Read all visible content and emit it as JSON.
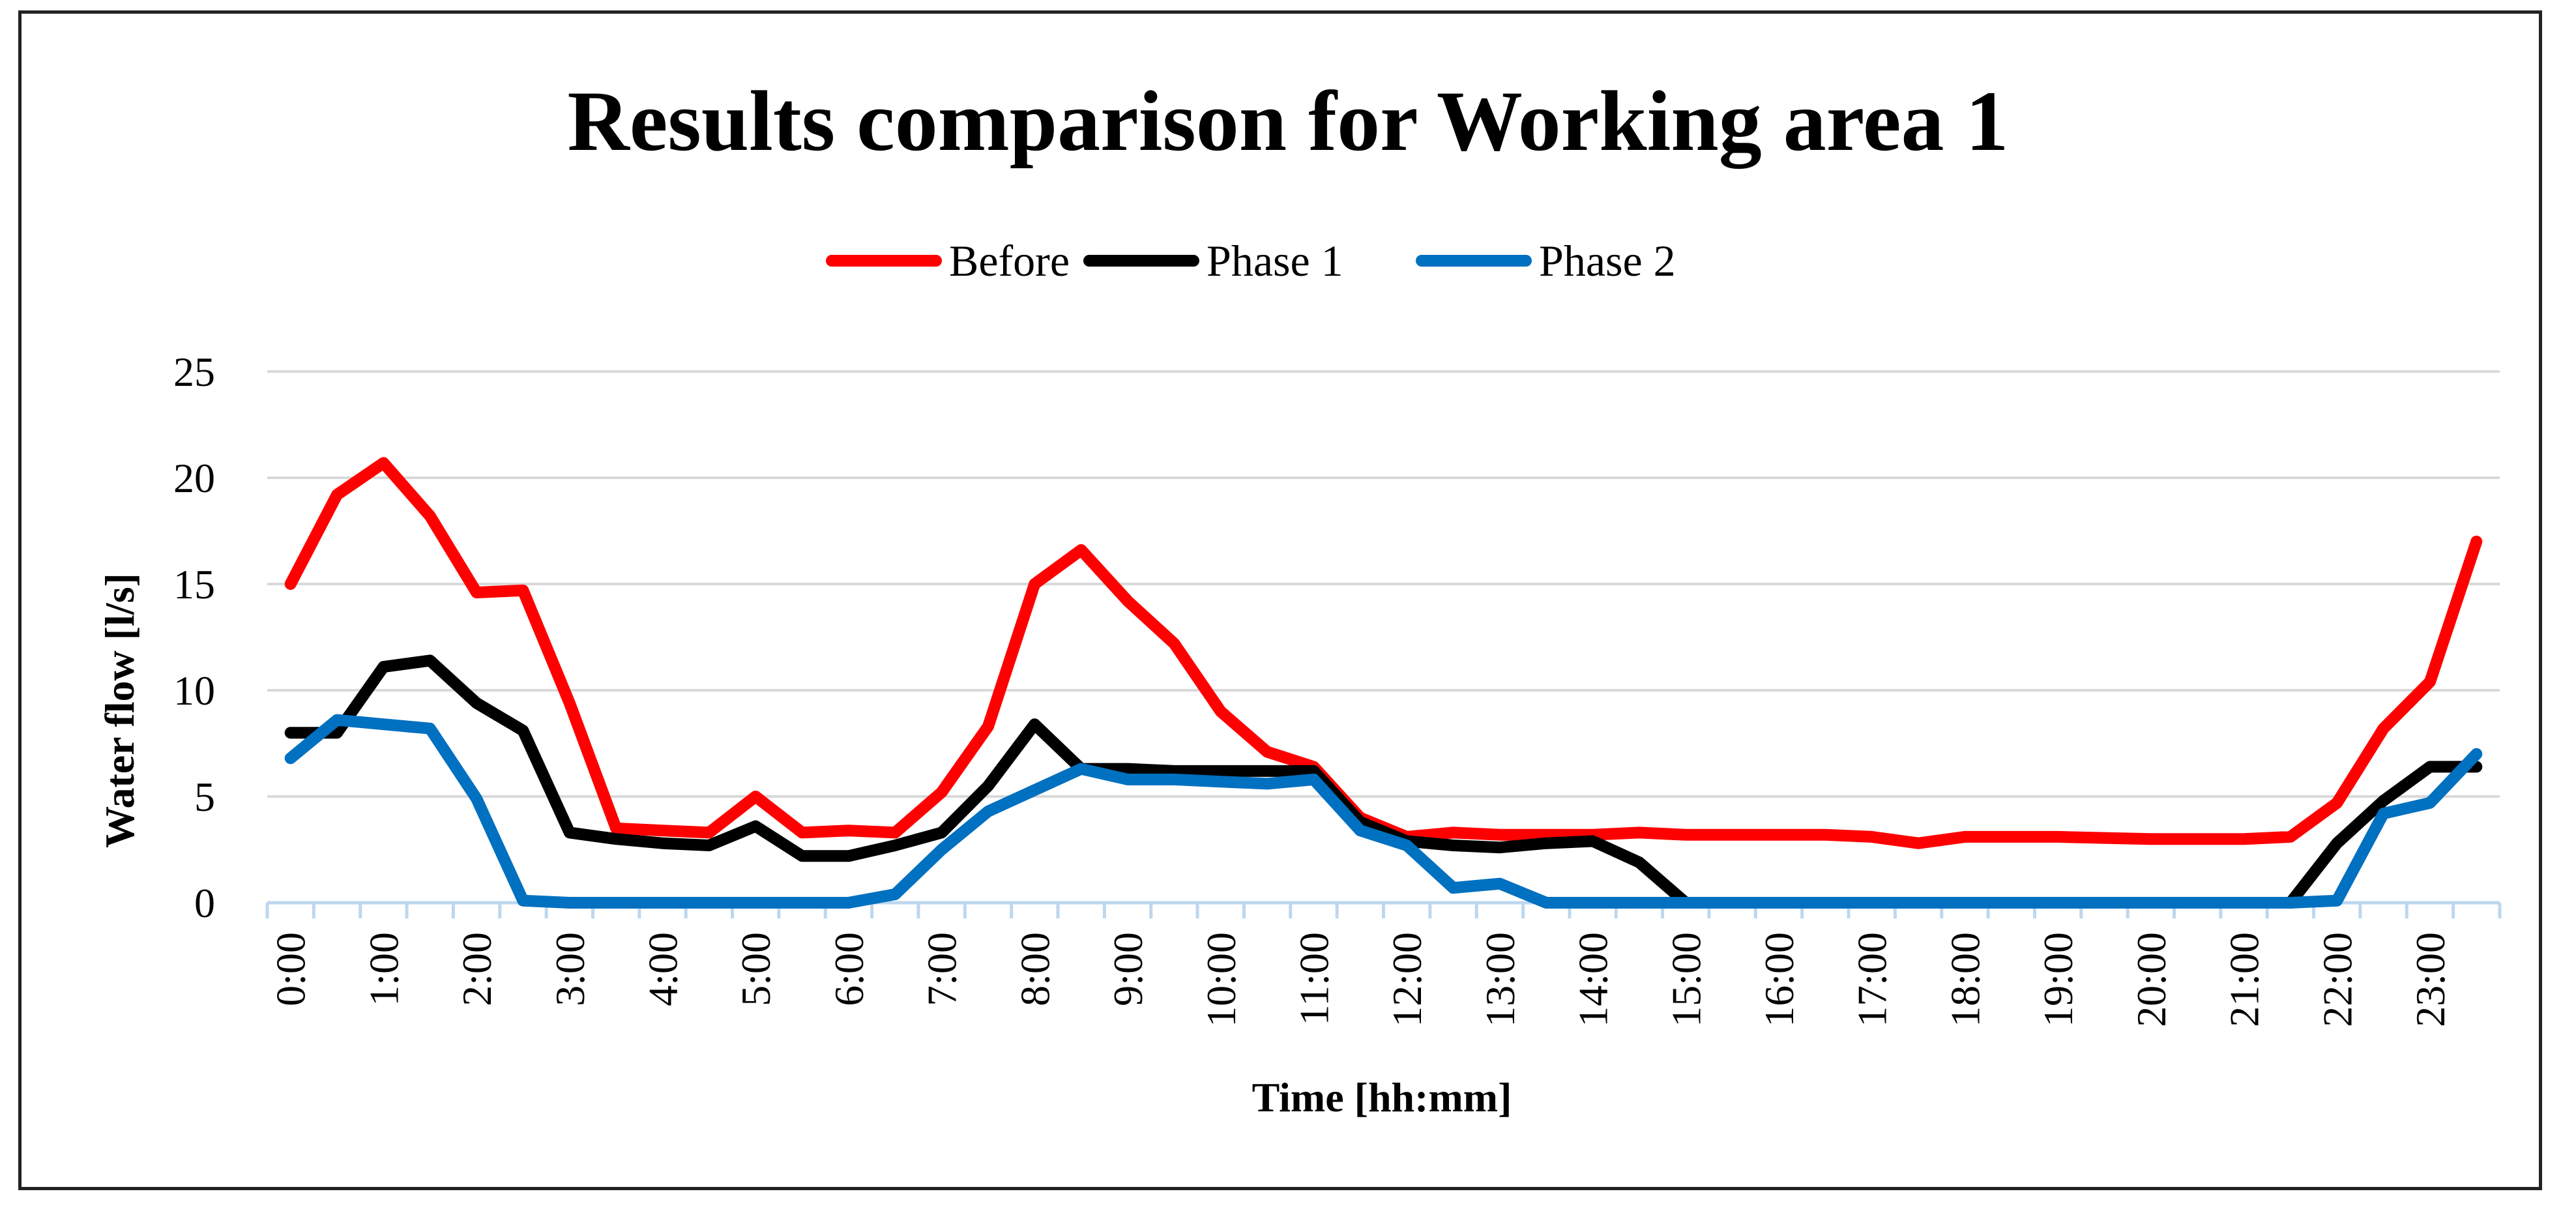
{
  "chart_data": {
    "type": "line",
    "title": "Results comparison for Working area 1",
    "xlabel": "Time [hh:mm]",
    "ylabel": "Water flow [l/s]",
    "ylim": [
      0,
      25
    ],
    "yticks": [
      "0",
      "5",
      "10",
      "15",
      "20",
      "25"
    ],
    "grid": "horizontal",
    "legend_position": "top",
    "tick_labels": [
      "0:00",
      "1:00",
      "2:00",
      "3:00",
      "4:00",
      "5:00",
      "6:00",
      "7:00",
      "8:00",
      "9:00",
      "10:00",
      "11:00",
      "12:00",
      "13:00",
      "14:00",
      "15:00",
      "16:00",
      "17:00",
      "18:00",
      "19:00",
      "20:00",
      "21:00",
      "22:00",
      "23:00"
    ],
    "x": [
      "0:00",
      "0:30",
      "1:00",
      "1:30",
      "2:00",
      "2:30",
      "3:00",
      "3:30",
      "4:00",
      "4:30",
      "5:00",
      "5:30",
      "6:00",
      "6:30",
      "7:00",
      "7:30",
      "8:00",
      "8:30",
      "9:00",
      "9:30",
      "10:00",
      "10:30",
      "11:00",
      "11:30",
      "12:00",
      "12:30",
      "13:00",
      "13:30",
      "14:00",
      "14:30",
      "15:00",
      "15:30",
      "16:00",
      "16:30",
      "17:00",
      "17:30",
      "18:00",
      "18:30",
      "19:00",
      "19:30",
      "20:00",
      "20:30",
      "21:00",
      "21:30",
      "22:00",
      "22:30",
      "23:00",
      "23:30"
    ],
    "series": [
      {
        "name": "Before",
        "color": "#FF0000",
        "values": [
          15.0,
          19.2,
          20.7,
          18.2,
          14.6,
          14.7,
          9.4,
          3.5,
          3.4,
          3.3,
          5.0,
          3.3,
          3.4,
          3.3,
          5.2,
          8.3,
          15.0,
          16.6,
          14.2,
          12.2,
          9.0,
          7.1,
          6.4,
          4.0,
          3.1,
          3.3,
          3.2,
          3.2,
          3.2,
          3.3,
          3.2,
          3.2,
          3.2,
          3.2,
          3.1,
          2.8,
          3.1,
          3.1,
          3.1,
          3.05,
          3.0,
          3.0,
          3.0,
          3.1,
          4.7,
          8.2,
          10.4,
          17.0
        ]
      },
      {
        "name": "Phase 1",
        "color": "#000000",
        "values": [
          8.0,
          8.0,
          11.1,
          11.4,
          9.4,
          8.1,
          3.3,
          3.0,
          2.8,
          2.7,
          3.6,
          2.2,
          2.2,
          2.7,
          3.3,
          5.5,
          8.4,
          6.3,
          6.3,
          6.2,
          6.2,
          6.2,
          6.2,
          3.8,
          2.9,
          2.7,
          2.6,
          2.8,
          2.9,
          1.9,
          0,
          0,
          0,
          0,
          0,
          0,
          0,
          0,
          0,
          0,
          0,
          0,
          0,
          0,
          2.8,
          4.8,
          6.4,
          6.4
        ]
      },
      {
        "name": "Phase 2",
        "color": "#0070C0",
        "values": [
          6.8,
          8.6,
          8.4,
          8.2,
          4.9,
          0.1,
          0,
          0,
          0,
          0,
          0,
          0,
          0,
          0.4,
          2.5,
          4.3,
          5.3,
          6.3,
          5.8,
          5.8,
          5.7,
          5.6,
          5.8,
          3.4,
          2.7,
          0.7,
          0.9,
          0,
          0,
          0,
          0,
          0,
          0,
          0,
          0,
          0,
          0,
          0,
          0,
          0,
          0,
          0,
          0,
          0,
          0.1,
          4.2,
          4.7,
          7.0
        ]
      }
    ]
  }
}
